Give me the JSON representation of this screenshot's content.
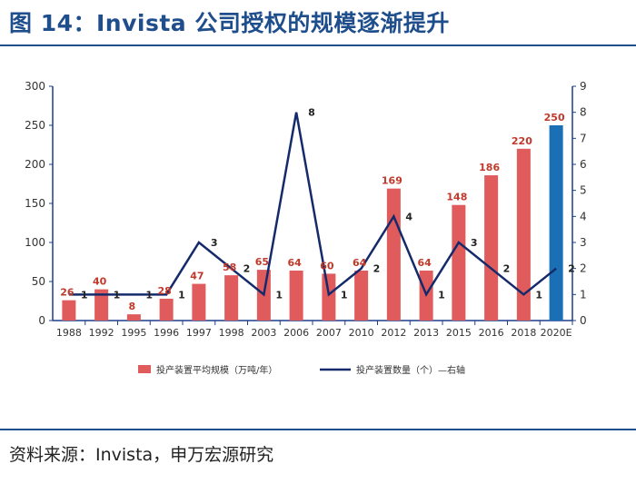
{
  "title": "图 14：Invista 公司授权的规模逐渐提升",
  "source": "资料来源：Invista，申万宏源研究",
  "colors": {
    "bar": "#e05c5c",
    "bar_highlight": "#1a6fb5",
    "line": "#152a6b",
    "label": "#c0392b",
    "axis": "#1f3f8a"
  },
  "chart_data": {
    "type": "bar",
    "categories": [
      "1988",
      "1992",
      "1995",
      "1996",
      "1997",
      "1998",
      "2003",
      "2006",
      "2007",
      "2010",
      "2012",
      "2013",
      "2015",
      "2016",
      "2018",
      "2020E"
    ],
    "series": [
      {
        "name": "投产装置平均规模（万吨/年）",
        "kind": "bar",
        "axis": "left",
        "values": [
          26,
          40,
          8,
          28,
          47,
          58,
          65,
          64,
          60,
          64,
          169,
          64,
          148,
          186,
          220,
          250
        ],
        "labels": [
          "26",
          "40",
          "8",
          "28",
          "47",
          "58",
          "65",
          "64",
          "60",
          "64",
          "169",
          "64",
          "148",
          "186",
          "220",
          "250"
        ]
      },
      {
        "name": "投产装置数量（个）—右轴",
        "kind": "line",
        "axis": "right",
        "values": [
          1,
          1,
          1,
          1,
          3,
          2,
          1,
          8,
          1,
          2,
          4,
          1,
          3,
          2,
          1,
          2
        ],
        "labels": [
          "1",
          "1",
          "1",
          "1",
          "3",
          "2",
          "1",
          "8",
          "1",
          "2",
          "4",
          "1",
          "3",
          "2",
          "1",
          "2"
        ]
      }
    ],
    "y_left": {
      "range": [
        0,
        300
      ],
      "ticks": [
        "0",
        "50",
        "100",
        "150",
        "200",
        "250",
        "300"
      ]
    },
    "y_right": {
      "range": [
        0,
        9
      ],
      "ticks": [
        "0",
        "1",
        "2",
        "3",
        "4",
        "5",
        "6",
        "7",
        "8",
        "9"
      ]
    },
    "highlight_category": "2020E",
    "legend": "bottom",
    "grid": false
  }
}
